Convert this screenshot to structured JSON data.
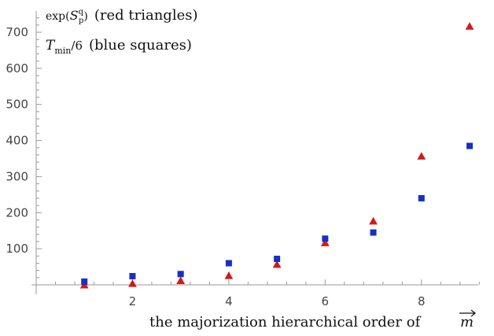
{
  "chart_data": {
    "type": "scatter",
    "title": "",
    "xlabel": "the majorization hierarchical order of",
    "xlabel_symbol": "m",
    "ylabel": "",
    "xlim": [
      0,
      9.4
    ],
    "ylim": [
      0,
      740
    ],
    "x_ticks": [
      2,
      4,
      6,
      8
    ],
    "y_ticks": [
      100,
      200,
      300,
      400,
      500,
      600,
      700
    ],
    "grid": false,
    "annotations": [
      {
        "id": "red",
        "prefix": "exp(",
        "symbol": "S",
        "sup": "q",
        "sub": "p",
        "suffix": ")",
        "desc": "(red triangles)"
      },
      {
        "id": "blue",
        "prefix": "",
        "symbol": "T",
        "sub": "min",
        "suffix": "/6",
        "desc": "(blue squares)"
      }
    ],
    "series": [
      {
        "marker": "triangle",
        "color": "#d61818",
        "points": [
          [
            1,
            -2
          ],
          [
            2,
            2
          ],
          [
            3,
            10
          ],
          [
            4,
            24
          ],
          [
            5,
            55
          ],
          [
            6,
            115
          ],
          [
            7,
            175
          ],
          [
            8,
            355
          ],
          [
            9,
            715
          ]
        ]
      },
      {
        "marker": "square",
        "color": "#1530c8",
        "points": [
          [
            1,
            9
          ],
          [
            2,
            24
          ],
          [
            3,
            30
          ],
          [
            4,
            60
          ],
          [
            5,
            72
          ],
          [
            6,
            128
          ],
          [
            7,
            145
          ],
          [
            8,
            240
          ],
          [
            9,
            385
          ]
        ]
      }
    ]
  }
}
